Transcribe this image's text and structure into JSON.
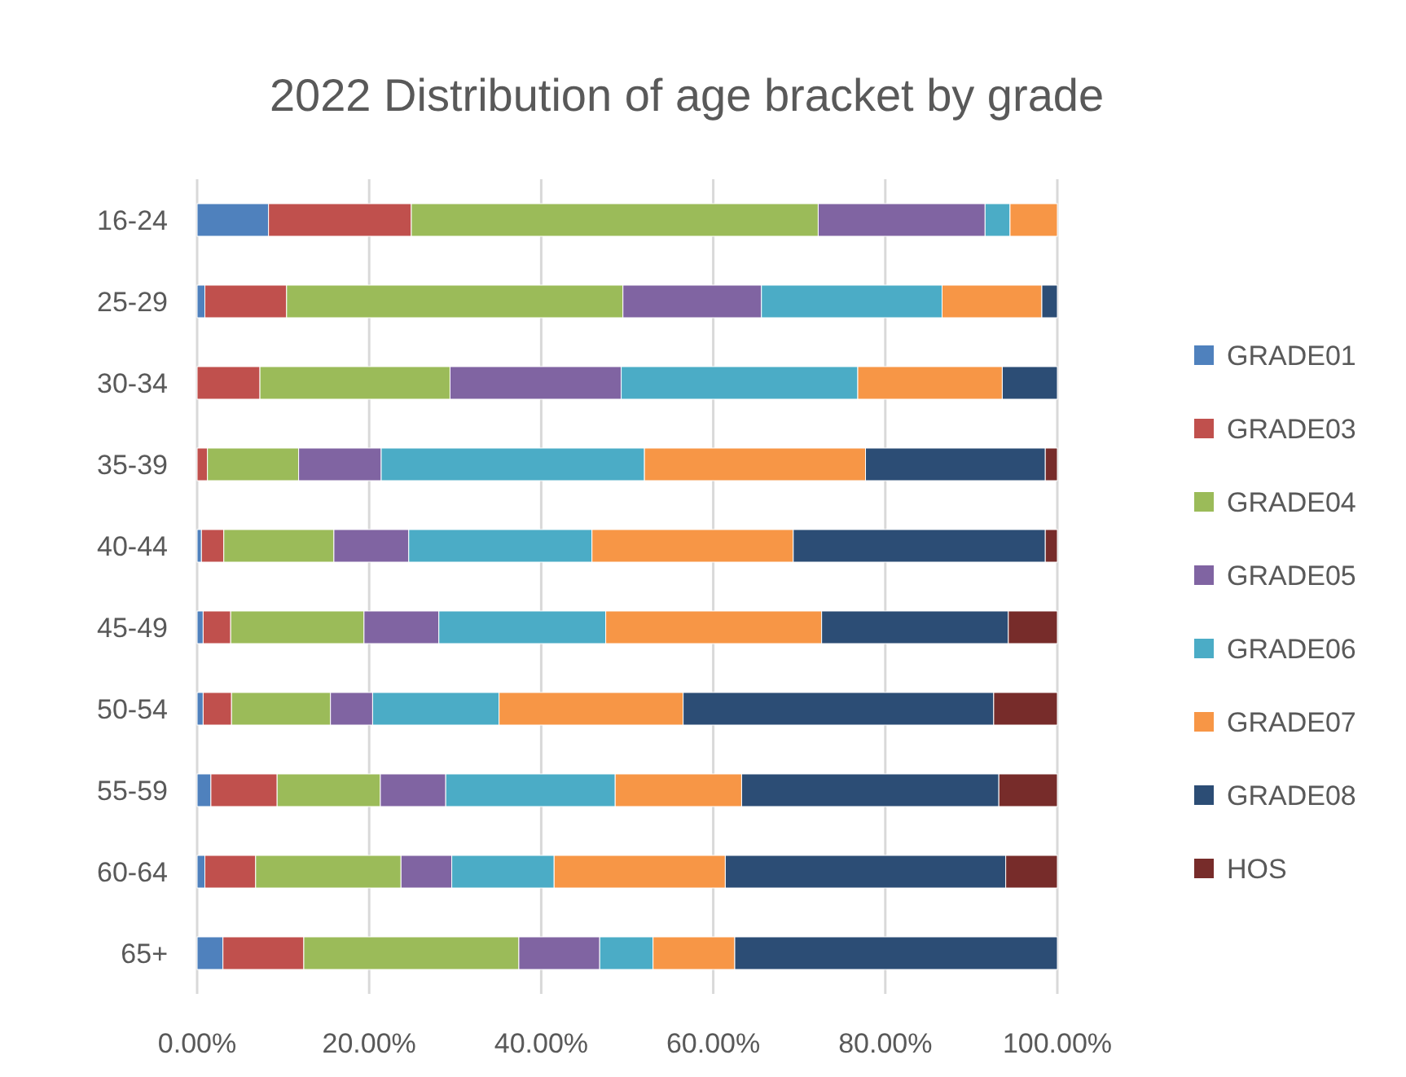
{
  "chart_data": {
    "type": "bar",
    "orientation": "horizontal",
    "stacked": true,
    "title": "2022 Distribution of age bracket by grade",
    "categories": [
      "16-24",
      "25-29",
      "30-34",
      "35-39",
      "40-44",
      "45-49",
      "50-54",
      "55-59",
      "60-64",
      "65+"
    ],
    "series": [
      {
        "name": "GRADE01",
        "color": "#4f81bd",
        "values": [
          8.3,
          0.9,
          0,
          0,
          0.5,
          0.7,
          0.7,
          1.6,
          0.9,
          3.0
        ]
      },
      {
        "name": "GRADE03",
        "color": "#c0504d",
        "values": [
          16.6,
          9.5,
          7.3,
          1.2,
          2.6,
          3.2,
          3.3,
          7.7,
          5.9,
          9.4
        ]
      },
      {
        "name": "GRADE04",
        "color": "#9bbb59",
        "values": [
          47.3,
          39.1,
          22.1,
          10.6,
          12.8,
          15.5,
          11.5,
          12.0,
          16.9,
          25.0
        ]
      },
      {
        "name": "GRADE05",
        "color": "#8064a2",
        "values": [
          19.4,
          16.1,
          19.9,
          9.6,
          8.7,
          8.7,
          4.9,
          7.6,
          5.9,
          9.4
        ]
      },
      {
        "name": "GRADE06",
        "color": "#4bacc6",
        "values": [
          2.9,
          21.0,
          27.5,
          30.6,
          21.3,
          19.4,
          14.7,
          19.7,
          11.9,
          6.2
        ]
      },
      {
        "name": "GRADE07",
        "color": "#f79646",
        "values": [
          5.5,
          11.6,
          16.8,
          25.7,
          23.4,
          25.1,
          21.4,
          14.7,
          19.9,
          9.5
        ]
      },
      {
        "name": "GRADE08",
        "color": "#2c4d75",
        "values": [
          0,
          1.8,
          6.4,
          20.9,
          29.3,
          21.7,
          36.1,
          29.9,
          32.6,
          37.5
        ]
      },
      {
        "name": "HOS",
        "color": "#772c2a",
        "values": [
          0,
          0,
          0,
          1.4,
          1.4,
          5.7,
          7.4,
          6.8,
          6.0,
          0
        ]
      }
    ],
    "xlim": [
      0,
      100
    ],
    "xticks": [
      {
        "value": 0,
        "label": "0.00%"
      },
      {
        "value": 20,
        "label": "20.00%"
      },
      {
        "value": 40,
        "label": "40.00%"
      },
      {
        "value": 60,
        "label": "60.00%"
      },
      {
        "value": 80,
        "label": "80.00%"
      },
      {
        "value": 100,
        "label": "100.00%"
      }
    ],
    "grid": "x",
    "legend": "right"
  }
}
